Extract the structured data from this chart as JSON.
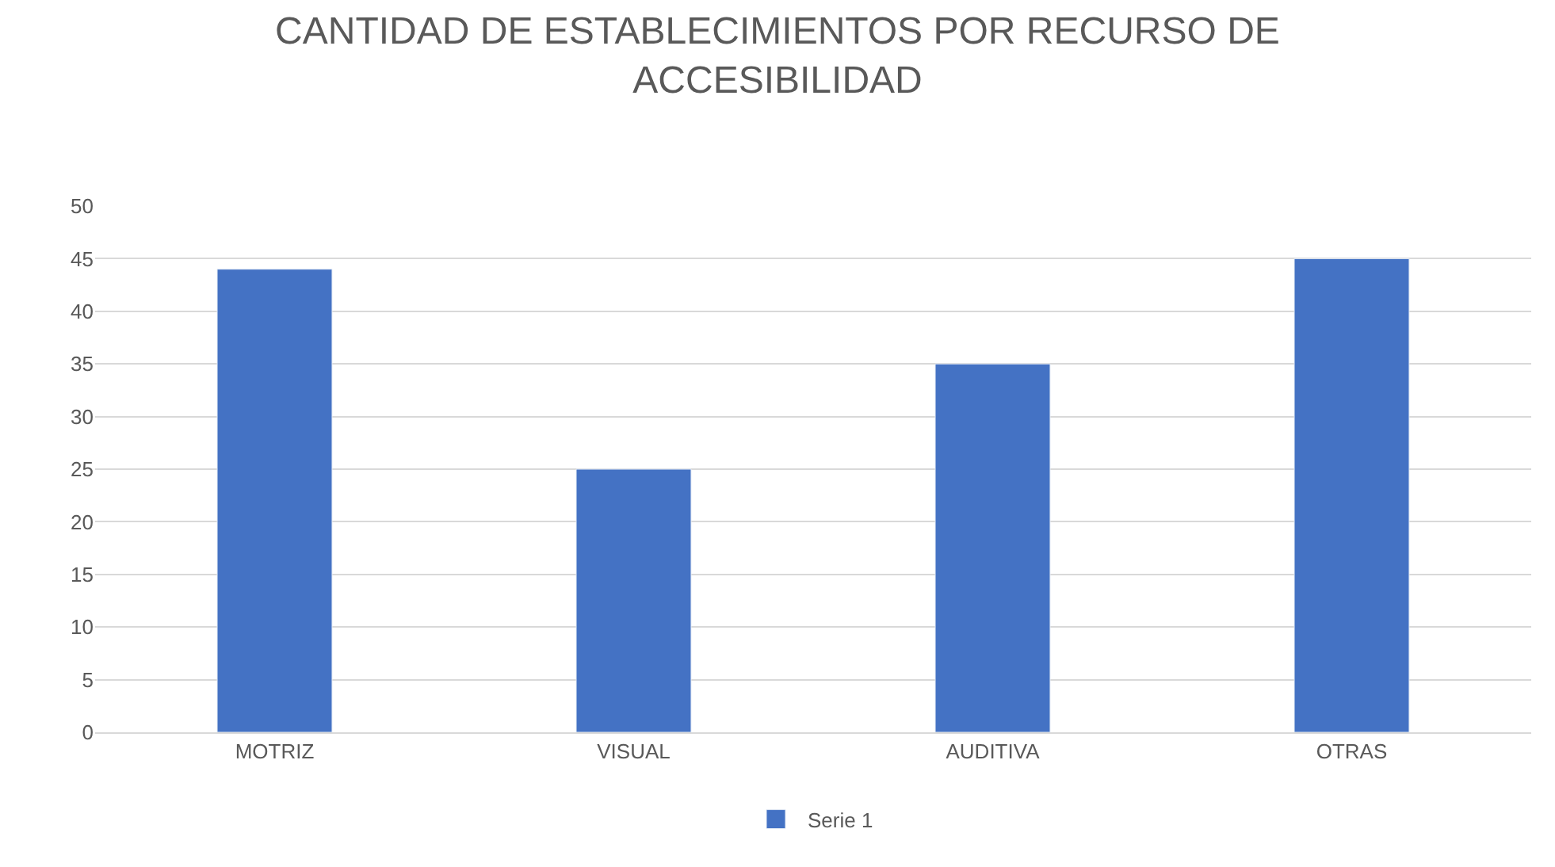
{
  "chart_data": {
    "type": "bar",
    "title": "CANTIDAD DE ESTABLECIMIENTOS POR RECURSO DE ACCESIBILIDAD",
    "categories": [
      "MOTRIZ",
      "VISUAL",
      "AUDITIVA",
      "OTRAS"
    ],
    "series": [
      {
        "name": "Serie 1",
        "color": "#4472c4",
        "values": [
          44,
          25,
          35,
          45
        ]
      }
    ],
    "ylim": [
      0,
      50
    ],
    "yticks": [
      0,
      5,
      10,
      15,
      20,
      25,
      30,
      35,
      40,
      45,
      50
    ],
    "grid": "y",
    "legend": "bottom"
  }
}
